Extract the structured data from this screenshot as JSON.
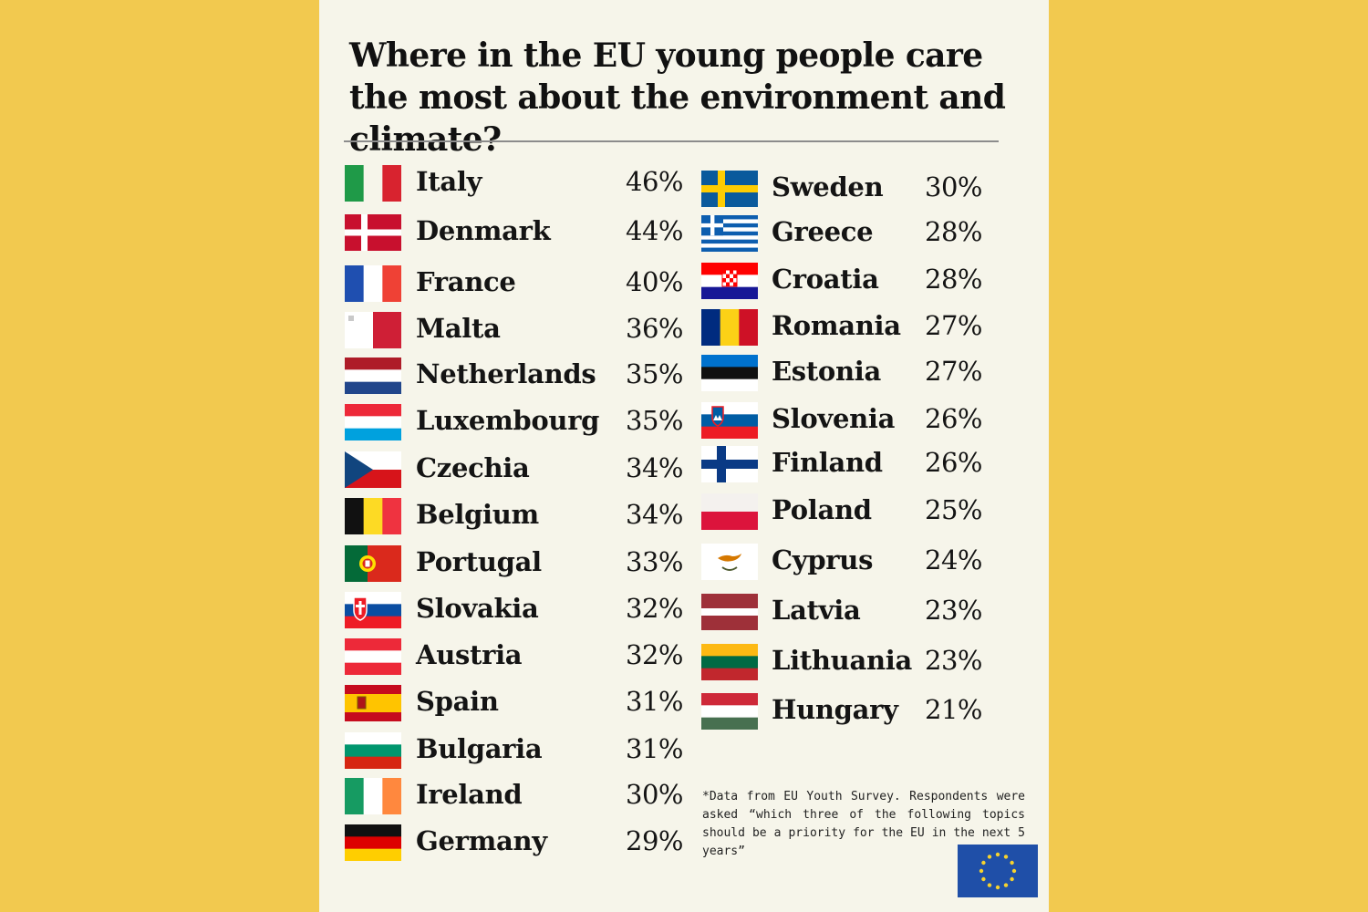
{
  "title": "Where in the EU young people care the most about the environment and climate?",
  "footnote": "*Data from EU Youth Survey. Respondents were asked “which three of the following topics should be a priority for the EU in the next 5 years”",
  "eu_flag_icon": "eu-flag-icon",
  "left_column": [
    {
      "country": "Italy",
      "percent": "46%",
      "flag": "italy-flag-icon"
    },
    {
      "country": "Denmark",
      "percent": "44%",
      "flag": "denmark-flag-icon"
    },
    {
      "country": "France",
      "percent": "40%",
      "flag": "france-flag-icon"
    },
    {
      "country": "Malta",
      "percent": "36%",
      "flag": "malta-flag-icon"
    },
    {
      "country": "Netherlands",
      "percent": "35%",
      "flag": "netherlands-flag-icon"
    },
    {
      "country": "Luxembourg",
      "percent": "35%",
      "flag": "luxembourg-flag-icon"
    },
    {
      "country": "Czechia",
      "percent": "34%",
      "flag": "czechia-flag-icon"
    },
    {
      "country": "Belgium",
      "percent": "34%",
      "flag": "belgium-flag-icon"
    },
    {
      "country": "Portugal",
      "percent": "33%",
      "flag": "portugal-flag-icon"
    },
    {
      "country": "Slovakia",
      "percent": "32%",
      "flag": "slovakia-flag-icon"
    },
    {
      "country": "Austria",
      "percent": "32%",
      "flag": "austria-flag-icon"
    },
    {
      "country": "Spain",
      "percent": "31%",
      "flag": "spain-flag-icon"
    },
    {
      "country": "Bulgaria",
      "percent": "31%",
      "flag": "bulgaria-flag-icon"
    },
    {
      "country": "Ireland",
      "percent": "30%",
      "flag": "ireland-flag-icon"
    },
    {
      "country": "Germany",
      "percent": "29%",
      "flag": "germany-flag-icon"
    }
  ],
  "right_column": [
    {
      "country": "Sweden",
      "percent": "30%",
      "flag": "sweden-flag-icon"
    },
    {
      "country": "Greece",
      "percent": "28%",
      "flag": "greece-flag-icon"
    },
    {
      "country": "Croatia",
      "percent": "28%",
      "flag": "croatia-flag-icon"
    },
    {
      "country": "Romania",
      "percent": "27%",
      "flag": "romania-flag-icon"
    },
    {
      "country": "Estonia",
      "percent": "27%",
      "flag": "estonia-flag-icon"
    },
    {
      "country": "Slovenia",
      "percent": "26%",
      "flag": "slovenia-flag-icon"
    },
    {
      "country": "Finland",
      "percent": "26%",
      "flag": "finland-flag-icon"
    },
    {
      "country": "Poland",
      "percent": "25%",
      "flag": "poland-flag-icon"
    },
    {
      "country": "Cyprus",
      "percent": "24%",
      "flag": "cyprus-flag-icon"
    },
    {
      "country": "Latvia",
      "percent": "23%",
      "flag": "latvia-flag-icon"
    },
    {
      "country": "Lithuania",
      "percent": "23%",
      "flag": "lithuania-flag-icon"
    },
    {
      "country": "Hungary",
      "percent": "21%",
      "flag": "hungary-flag-icon"
    }
  ],
  "colors": {
    "background": "#f2c94f",
    "card": "#f6f5ea",
    "text": "#141414",
    "eu_blue": "#1f4fa8",
    "eu_star": "#f6d22e"
  }
}
